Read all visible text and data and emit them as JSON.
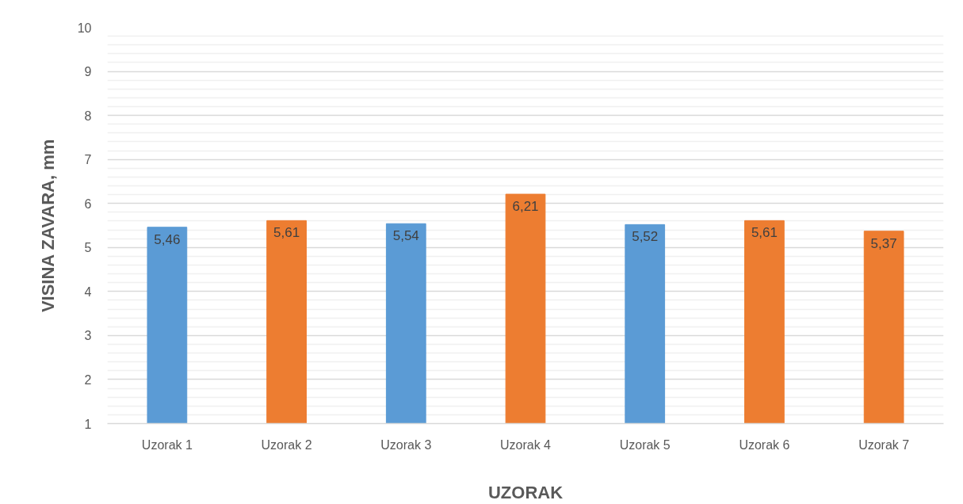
{
  "chart_data": {
    "type": "bar",
    "xlabel": "UZORAK",
    "ylabel": "VISINA ZAVARA, mm",
    "categories": [
      "Uzorak 1",
      "Uzorak 2",
      "Uzorak 3",
      "Uzorak 4",
      "Uzorak 5",
      "Uzorak 6",
      "Uzorak 7"
    ],
    "values": [
      5.46,
      5.61,
      5.54,
      6.21,
      5.52,
      5.61,
      5.37
    ],
    "value_labels": [
      "5,46",
      "5,61",
      "5,54",
      "6,21",
      "5,52",
      "5,61",
      "5,37"
    ],
    "colors": [
      "#5b9bd5",
      "#ed7d31",
      "#5b9bd5",
      "#ed7d31",
      "#5b9bd5",
      "#ed7d31",
      "#ed7d31"
    ],
    "ylim": [
      1,
      10
    ],
    "yticks": [
      1,
      {
        "value": 1.2,
        "label": null
      },
      {
        "value": 1.4,
        "label": null
      },
      {
        "value": 1.6,
        "label": null
      },
      {
        "value": 1.8,
        "label": null
      },
      2,
      {
        "value": 2.2,
        "label": null
      },
      {
        "value": 2.4,
        "label": null
      },
      {
        "value": 2.6,
        "label": null
      },
      {
        "value": 2.8,
        "label": null
      },
      3,
      {
        "value": 3.2,
        "label": null
      },
      {
        "value": 3.4,
        "label": null
      },
      {
        "value": 3.6,
        "label": null
      },
      {
        "value": 3.8,
        "label": null
      },
      4,
      {
        "value": 4.2,
        "label": null
      },
      {
        "value": 4.4,
        "label": null
      },
      {
        "value": 4.6,
        "label": null
      },
      {
        "value": 4.8,
        "label": null
      },
      5,
      {
        "value": 5.2,
        "label": null
      },
      {
        "value": 5.4,
        "label": null
      },
      {
        "value": 5.6,
        "label": null
      },
      {
        "value": 5.8,
        "label": null
      },
      6,
      {
        "value": 6.2,
        "label": null
      },
      {
        "value": 6.4,
        "label": null
      },
      {
        "value": 6.6,
        "label": null
      },
      {
        "value": 6.8,
        "label": null
      },
      7,
      {
        "value": 7.2,
        "label": null
      },
      {
        "value": 7.4,
        "label": null
      },
      {
        "value": 7.6,
        "label": null
      },
      {
        "value": 7.8,
        "label": null
      },
      8,
      {
        "value": 8.2,
        "label": null
      },
      {
        "value": 8.4,
        "label": null
      },
      {
        "value": 8.6,
        "label": null
      },
      {
        "value": 8.8,
        "label": null
      },
      9,
      {
        "value": 9.2,
        "label": null
      },
      {
        "value": 9.4,
        "label": null
      },
      {
        "value": 9.6,
        "label": null
      },
      {
        "value": 9.8,
        "label": null
      },
      10
    ],
    "grid": "y"
  }
}
